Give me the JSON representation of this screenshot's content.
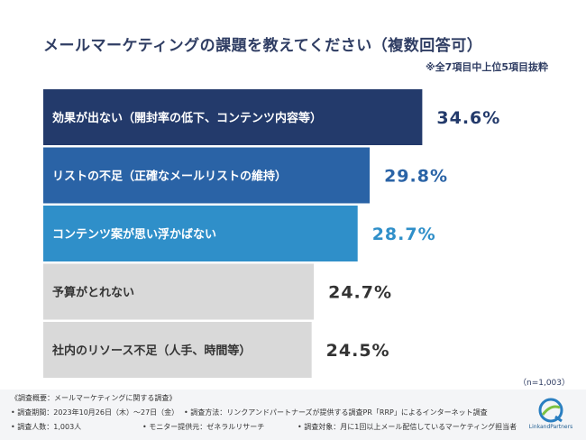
{
  "title": "メールマーケティングの課題を教えてください（複数回答可）",
  "subnote": "※全7項目中上位5項目抜粋",
  "chart_data": {
    "type": "bar",
    "orientation": "horizontal",
    "categories": [
      "効果が出ない（開封率の低下、コンテンツ内容等）",
      "リストの不足（正確なメールリストの維持）",
      "コンテンツ案が思い浮かばない",
      "予算がとれない",
      "社内のリソース不足（人手、時間等）"
    ],
    "values": [
      34.6,
      29.8,
      28.7,
      24.7,
      24.5
    ],
    "value_labels": [
      "34.6%",
      "29.8%",
      "28.7%",
      "24.7%",
      "24.5%"
    ],
    "bar_colors": [
      "#233a6b",
      "#2a63a6",
      "#2f8fc9",
      "#d9d9d9",
      "#d9d9d9"
    ],
    "label_colors": [
      "#ffffff",
      "#ffffff",
      "#ffffff",
      "#333333",
      "#333333"
    ],
    "value_colors": [
      "#233a6b",
      "#2a63a6",
      "#2f8fc9",
      "#333333",
      "#333333"
    ],
    "xlim": [
      0,
      40
    ],
    "grid": false,
    "legend": "none"
  },
  "n_note": "（n=1,003）",
  "footer": {
    "heading": "《調査概要：メールマーケティングに関する調査》",
    "period": "• 調査期間：2023年10月26日（木）～27日（金）",
    "method": "• 調査方法：リンクアンドパートナーズが提供する調査PR「RRP」によるインターネット調査",
    "count": "• 調査人数：1,003人",
    "monitor": "• モニター提供元：ゼネラルリサーチ",
    "target": "• 調査対象：月に1回以上メール配信しているマーケティング担当者"
  },
  "logo": {
    "text": "LinkandPartners",
    "icon": "globe-logo-icon"
  }
}
